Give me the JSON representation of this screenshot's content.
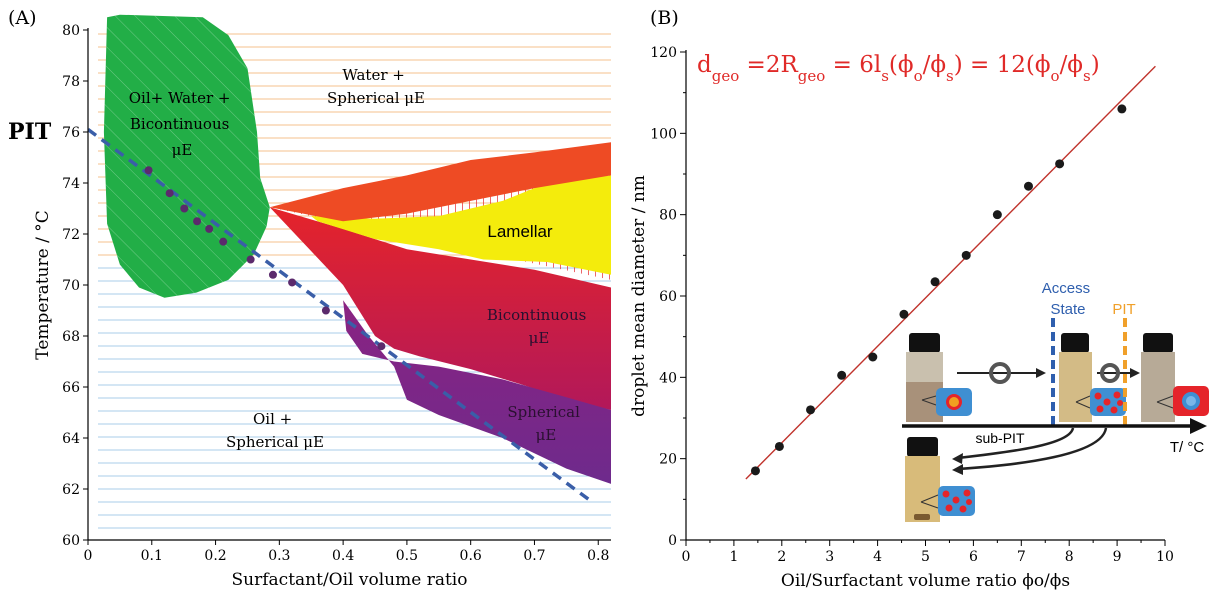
{
  "panel_a": {
    "label": "(A)",
    "pit_label": "PIT",
    "region_labels": {
      "oil_water_bicont": [
        "Oil+ Water +",
        "Bicontinuous",
        "μE"
      ],
      "water_spherical": [
        "Water +",
        "Spherical μE"
      ],
      "lamellar": [
        "Lamellar"
      ],
      "bicontinuous": [
        "Bicontinuous",
        "μE"
      ],
      "spherical": [
        "Spherical",
        "μE"
      ],
      "oil_spherical": [
        "Oil +",
        "Spherical μE"
      ]
    }
  },
  "panel_b": {
    "label": "(B)",
    "equation": {
      "d": "d",
      "geo": "geo",
      "eq1": " =2R",
      "eq2": " = 6l",
      "s": "s",
      "phi_open": "(ϕ",
      "o": "o",
      "slash": "/ϕ",
      "close_eq": ") = 12(ϕ",
      "end": ")"
    },
    "inset": {
      "access_state": [
        "Access",
        "State"
      ],
      "pit": "PIT",
      "sub_pit": "sub-PIT",
      "t_axis": "T/ °C"
    }
  },
  "colors": {
    "green": "#22ae47",
    "red": "#e5242a",
    "orange_red": "#ee4b24",
    "yellow": "#f4ec0c",
    "purple": "#7a2a87",
    "crimson": "#c4194a",
    "fit_line": "#c0332c",
    "equation": "#e02a28",
    "dashed_line": "#3a5ea8",
    "access_blue": "#2f5fae",
    "pit_orange": "#f0a02a",
    "hatch_orange": "#f4c18e",
    "hatch_blue": "#a9cce8",
    "dot_purple": "#5b2a6c"
  },
  "chart_data": [
    {
      "type": "scatter",
      "title": "",
      "xlabel": "Surfactant/Oil volume ratio",
      "ylabel": "Temperature / °C",
      "xlim": [
        0,
        0.82
      ],
      "ylim": [
        60,
        80
      ],
      "x_ticks": [
        0,
        0.1,
        0.2,
        0.3,
        0.4,
        0.5,
        0.6,
        0.7,
        0.8
      ],
      "x_tick_labels": [
        "0",
        "0.1",
        "0.2",
        "0.3",
        "0.4",
        "0.5",
        "0.6",
        "0.7",
        "0.8"
      ],
      "y_ticks": [
        60,
        62,
        64,
        66,
        68,
        70,
        72,
        74,
        76,
        78,
        80
      ],
      "y_tick_labels": [
        "60",
        "62",
        "64",
        "66",
        "68",
        "70",
        "72",
        "74",
        "76",
        "78",
        "80"
      ],
      "series": [
        {
          "x": [
            0.095,
            0.128,
            0.151,
            0.171,
            0.19,
            0.212,
            0.255,
            0.29,
            0.32,
            0.373,
            0.46
          ],
          "y": [
            74.5,
            73.6,
            73.0,
            72.5,
            72.2,
            71.7,
            71.0,
            70.4,
            70.1,
            69.0,
            67.6
          ]
        }
      ],
      "pit_line": {
        "x": [
          0,
          0.79
        ],
        "y": [
          76.1,
          61.5
        ]
      },
      "regions": {
        "oil_water_bicontinuous": [
          [
            0.03,
            80.5
          ],
          [
            0.05,
            80.6
          ],
          [
            0.18,
            80.5
          ],
          [
            0.22,
            79.8
          ],
          [
            0.25,
            78.5
          ],
          [
            0.265,
            76
          ],
          [
            0.27,
            74.2
          ],
          [
            0.285,
            73.05
          ],
          [
            0.28,
            72.3
          ],
          [
            0.26,
            71.2
          ],
          [
            0.22,
            70.2
          ],
          [
            0.17,
            69.7
          ],
          [
            0.12,
            69.5
          ],
          [
            0.08,
            69.9
          ],
          [
            0.05,
            70.8
          ],
          [
            0.03,
            72.4
          ],
          [
            0.025,
            76
          ]
        ],
        "upper_band": [
          [
            0.285,
            73.05
          ],
          [
            0.4,
            73.8
          ],
          [
            0.5,
            74.3
          ],
          [
            0.6,
            74.9
          ],
          [
            0.7,
            75.2
          ],
          [
            0.82,
            75.6
          ],
          [
            0.82,
            74.3
          ],
          [
            0.7,
            73.8
          ],
          [
            0.6,
            73.3
          ],
          [
            0.5,
            72.8
          ],
          [
            0.4,
            72.5
          ]
        ],
        "lamellar": [
          [
            0.35,
            72.7
          ],
          [
            0.45,
            72.6
          ],
          [
            0.55,
            72.7
          ],
          [
            0.65,
            73.3
          ],
          [
            0.72,
            74.0
          ],
          [
            0.82,
            74.3
          ],
          [
            0.82,
            70.4
          ],
          [
            0.72,
            70.9
          ],
          [
            0.62,
            71.0
          ],
          [
            0.55,
            71.4
          ],
          [
            0.45,
            71.8
          ],
          [
            0.36,
            72.5
          ]
        ],
        "bicontinuous": [
          [
            0.285,
            73.05
          ],
          [
            0.4,
            72.2
          ],
          [
            0.5,
            71.4
          ],
          [
            0.6,
            71.0
          ],
          [
            0.7,
            70.6
          ],
          [
            0.82,
            69.9
          ],
          [
            0.82,
            65.1
          ],
          [
            0.75,
            65.5
          ],
          [
            0.68,
            66.1
          ],
          [
            0.6,
            66.7
          ],
          [
            0.52,
            67.2
          ],
          [
            0.48,
            67.5
          ],
          [
            0.45,
            68.0
          ],
          [
            0.4,
            70.0
          ]
        ],
        "spherical": [
          [
            0.4,
            69.4
          ],
          [
            0.405,
            68.2
          ],
          [
            0.43,
            67.3
          ],
          [
            0.48,
            67.0
          ],
          [
            0.55,
            66.8
          ],
          [
            0.65,
            66.3
          ],
          [
            0.75,
            65.6
          ],
          [
            0.82,
            65.1
          ],
          [
            0.82,
            62.2
          ],
          [
            0.75,
            62.8
          ],
          [
            0.65,
            64.0
          ],
          [
            0.55,
            64.9
          ],
          [
            0.5,
            65.5
          ],
          [
            0.48,
            66.8
          ],
          [
            0.44,
            68.0
          ]
        ]
      }
    },
    {
      "type": "scatter",
      "title": "",
      "xlabel": "Oil/Surfactant volume ratio ϕo/ϕs",
      "ylabel": "droplet mean diameter / nm",
      "xlim": [
        0,
        10
      ],
      "ylim": [
        0,
        120
      ],
      "x_ticks": [
        0,
        1,
        2,
        3,
        4,
        5,
        6,
        7,
        8,
        9,
        10
      ],
      "x_tick_labels": [
        "0",
        "1",
        "2",
        "3",
        "4",
        "5",
        "6",
        "7",
        "8",
        "9",
        "10"
      ],
      "y_ticks": [
        0,
        20,
        40,
        60,
        80,
        100,
        120
      ],
      "y_tick_labels": [
        "0",
        "20",
        "40",
        "60",
        "80",
        "100",
        "120"
      ],
      "series": [
        {
          "x": [
            1.45,
            1.95,
            2.6,
            3.25,
            3.9,
            4.55,
            5.2,
            5.85,
            6.5,
            7.15,
            7.8,
            9.1
          ],
          "y": [
            17,
            23,
            32,
            40.5,
            45,
            55.5,
            63.5,
            70,
            80,
            87,
            92.5,
            106
          ]
        }
      ],
      "fit_line": {
        "x": [
          1.25,
          9.8
        ],
        "y": [
          15,
          116.5
        ]
      }
    }
  ]
}
